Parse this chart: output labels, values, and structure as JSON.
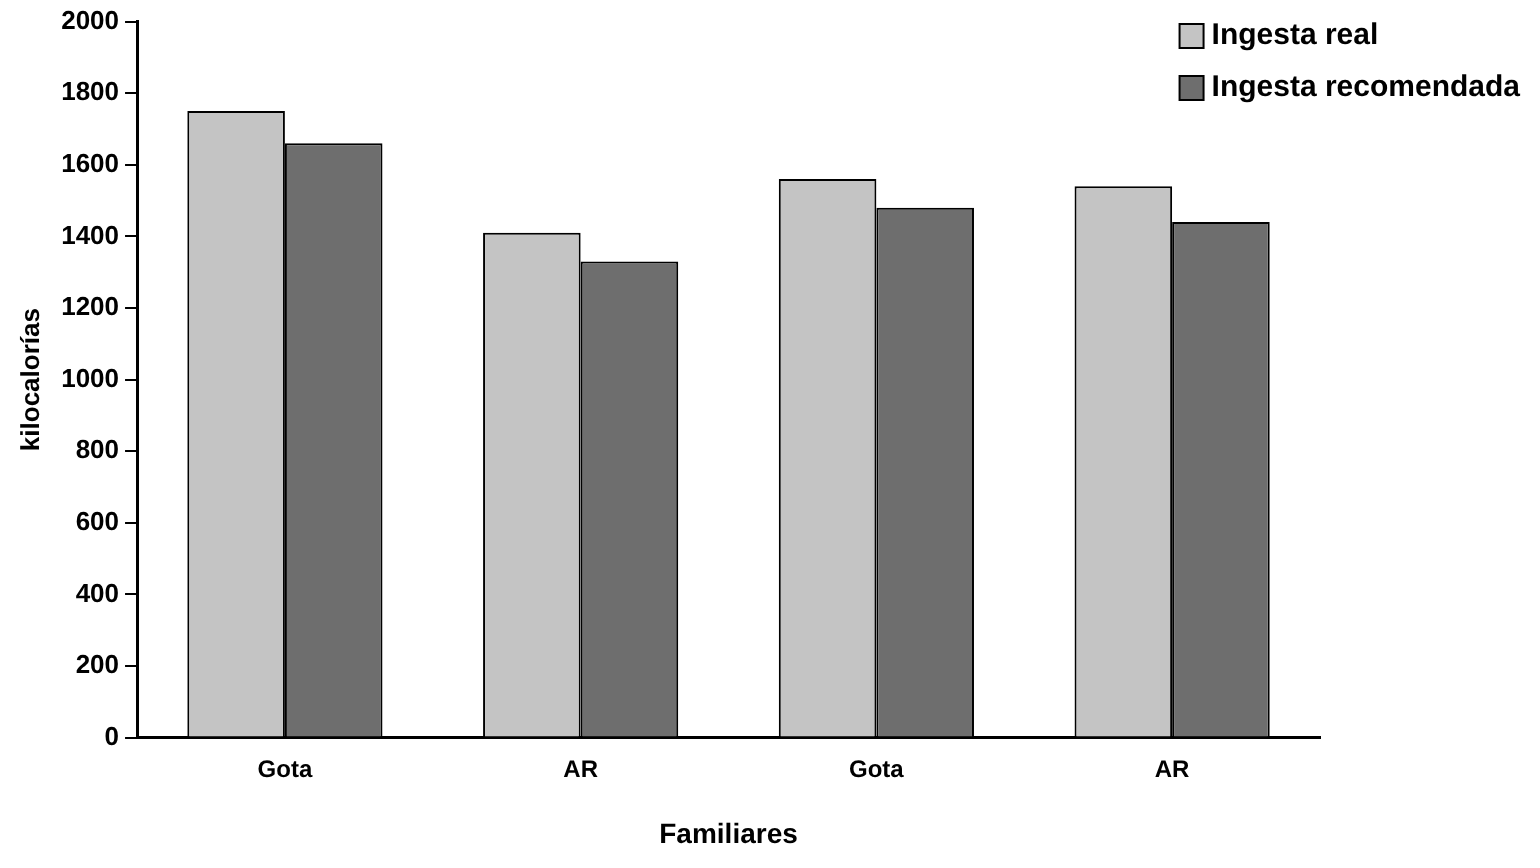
{
  "chart_data": {
    "type": "bar",
    "xlabel": "Familiares",
    "ylabel": "kilocalorías",
    "categories": [
      "Gota",
      "AR",
      "Gota",
      "AR"
    ],
    "series": [
      {
        "name": "Ingesta real",
        "color": "#c4c4c4",
        "values": [
          1750,
          1410,
          1560,
          1540
        ]
      },
      {
        "name": "Ingesta recomendada",
        "color": "#6e6e6e",
        "values": [
          1660,
          1330,
          1480,
          1440
        ]
      }
    ],
    "ylim": [
      0,
      2000
    ],
    "yticks": [
      0,
      200,
      400,
      600,
      800,
      1000,
      1200,
      1400,
      1600,
      1800,
      2000
    ],
    "grid": false,
    "legend": "top right"
  }
}
